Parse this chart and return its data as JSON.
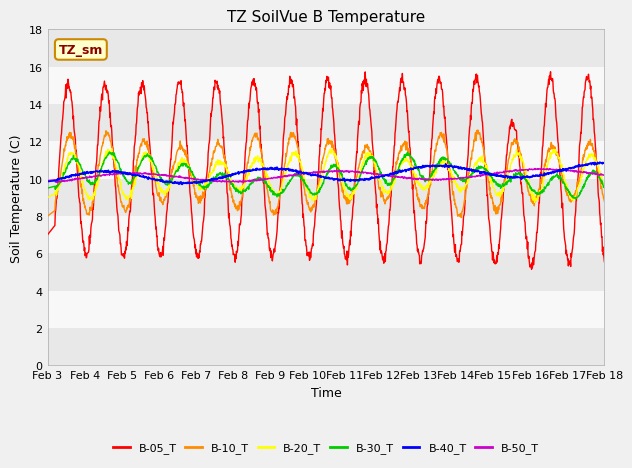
{
  "title": "TZ SoilVue B Temperature",
  "xlabel": "Time",
  "ylabel": "Soil Temperature (C)",
  "ylim": [
    0,
    18
  ],
  "yticks": [
    0,
    2,
    4,
    6,
    8,
    10,
    12,
    14,
    16,
    18
  ],
  "xlim": [
    0,
    15
  ],
  "xtick_labels": [
    "Feb 3",
    "Feb 4",
    "Feb 5",
    "Feb 6",
    "Feb 7",
    "Feb 8",
    "Feb 9",
    "Feb 10",
    "Feb 11",
    "Feb 12",
    "Feb 13",
    "Feb 14",
    "Feb 15",
    "Feb 16",
    "Feb 17",
    "Feb 18"
  ],
  "series_colors": {
    "B-05_T": "#ff0000",
    "B-10_T": "#ff8c00",
    "B-20_T": "#ffff00",
    "B-30_T": "#00cc00",
    "B-40_T": "#0000ff",
    "B-50_T": "#cc00cc"
  },
  "legend_label": "TZ_sm",
  "fig_bg_color": "#f0f0f0",
  "plot_bg_color": "#ffffff",
  "band_color_light": "#e8e8e8",
  "band_color_white": "#f8f8f8",
  "title_fontsize": 11,
  "axis_label_fontsize": 9,
  "tick_fontsize": 8
}
